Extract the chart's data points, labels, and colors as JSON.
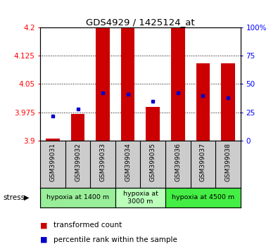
{
  "title": "GDS4929 / 1425124_at",
  "samples": [
    "GSM399031",
    "GSM399032",
    "GSM399033",
    "GSM399034",
    "GSM399035",
    "GSM399036",
    "GSM399037",
    "GSM399038"
  ],
  "bar_base": 3.9,
  "transformed_counts": [
    3.905,
    3.97,
    4.2,
    4.2,
    3.99,
    4.2,
    4.105,
    4.105
  ],
  "percentile_ranks": [
    22,
    28,
    42,
    41,
    35,
    42,
    40,
    38
  ],
  "ylim_left": [
    3.9,
    4.2
  ],
  "ylim_right": [
    0,
    100
  ],
  "yticks_left": [
    3.9,
    3.975,
    4.05,
    4.125,
    4.2
  ],
  "yticks_right": [
    0,
    25,
    50,
    75,
    100
  ],
  "bar_color": "#cc0000",
  "dot_color": "#0000cc",
  "groups": [
    {
      "label": "hypoxia at 1400 m",
      "start": 0,
      "end": 3,
      "color": "#99ee99"
    },
    {
      "label": "hypoxia at\n3000 m",
      "start": 3,
      "end": 5,
      "color": "#bbffbb"
    },
    {
      "label": "hypoxia at 4500 m",
      "start": 5,
      "end": 8,
      "color": "#44ee44"
    }
  ],
  "stress_label": "stress",
  "legend_bar_label": "transformed count",
  "legend_dot_label": "percentile rank within the sample",
  "sample_box_color": "#cccccc",
  "background_color": "#ffffff"
}
